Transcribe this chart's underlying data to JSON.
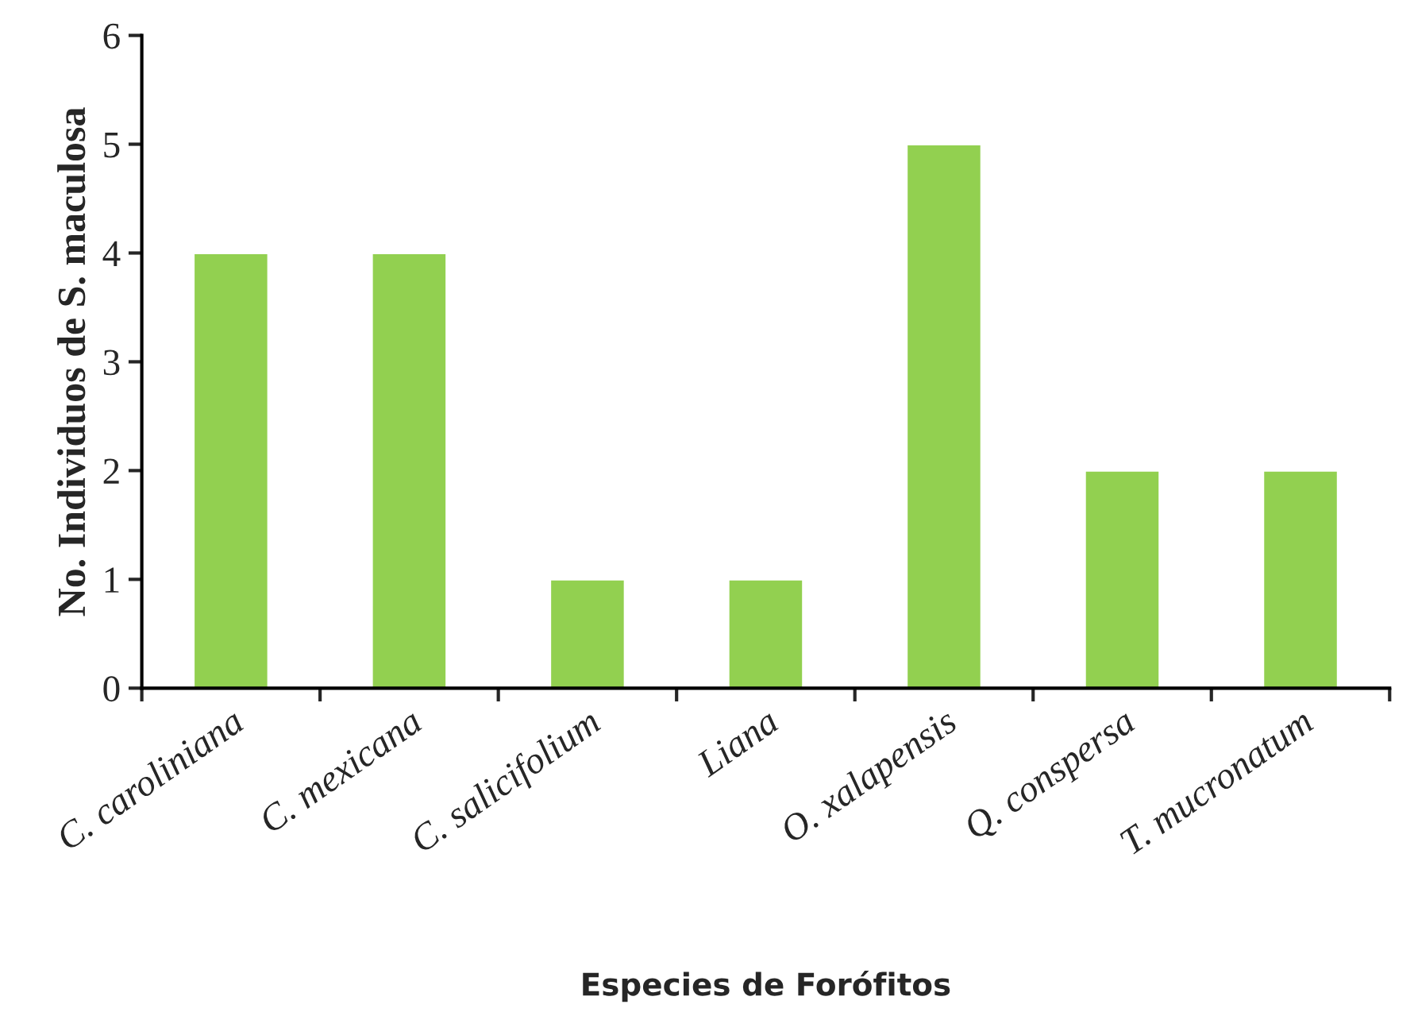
{
  "chart_data": {
    "type": "bar",
    "xlabel": "Especies de Forófitos",
    "ylabel": "No. Individuos de S. maculosa",
    "categories": [
      "C. caroliniana",
      "C. mexicana",
      "C. salicifolium",
      "Liana",
      "O. xalapensis",
      "Q. conspersa",
      "T. mucronatum"
    ],
    "values": [
      4,
      4,
      1,
      1,
      5,
      2,
      2
    ],
    "color": "#92d050",
    "ylim": [
      0,
      6
    ],
    "yticks": [
      0,
      1,
      2,
      3,
      4,
      5,
      6
    ],
    "grid": false,
    "legend": false
  }
}
